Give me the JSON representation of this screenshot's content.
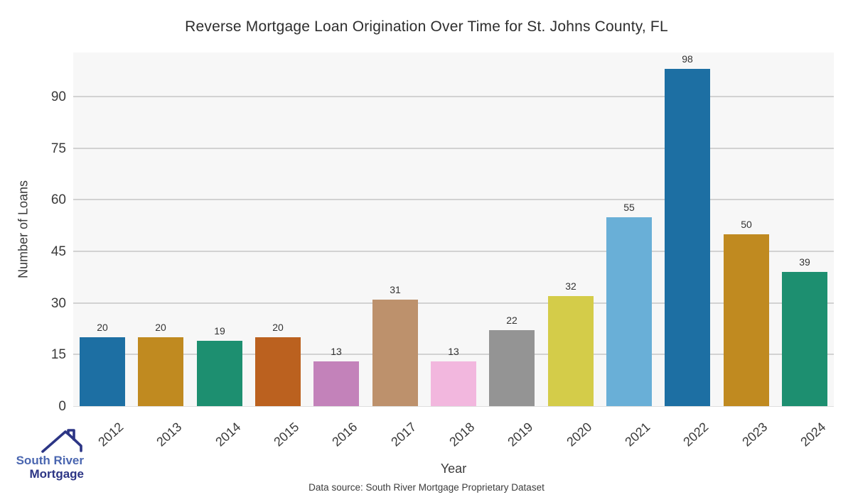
{
  "title": "Reverse Mortgage Loan Origination Over Time for St. Johns County, FL",
  "chart_data": {
    "type": "bar",
    "title": "Reverse Mortgage Loan Origination Over Time for St. Johns County, FL",
    "xlabel": "Year",
    "ylabel": "Number of Loans",
    "categories": [
      "2012",
      "2013",
      "2014",
      "2015",
      "2016",
      "2017",
      "2018",
      "2019",
      "2020",
      "2021",
      "2022",
      "2023",
      "2024"
    ],
    "values": [
      20,
      20,
      19,
      20,
      13,
      31,
      13,
      22,
      32,
      55,
      98,
      50,
      39
    ],
    "bar_colors": [
      "#1d6fa3",
      "#c08a20",
      "#1d8f70",
      "#bb611f",
      "#c382ba",
      "#bd916c",
      "#f2b7de",
      "#949494",
      "#d4cc49",
      "#69afd7",
      "#1d6fa3",
      "#c08a20",
      "#1d8f70"
    ],
    "yticks": [
      0,
      15,
      30,
      45,
      60,
      75,
      90
    ],
    "ylim": [
      0,
      103
    ],
    "grid": "horizontal",
    "grid_color": "#d2d2d2",
    "plot_bg": "#f7f7f7",
    "legend_position": "none",
    "value_labels_shown": true,
    "xtick_rotation": 42
  },
  "footer": {
    "caption": "Data source: South River Mortgage Proprietary Dataset"
  },
  "logo": {
    "line1": "South River",
    "line2": "Mortgage",
    "color_line1": "#4a66b0",
    "color_line2": "#2c3585",
    "roof_color": "#2c3585"
  }
}
